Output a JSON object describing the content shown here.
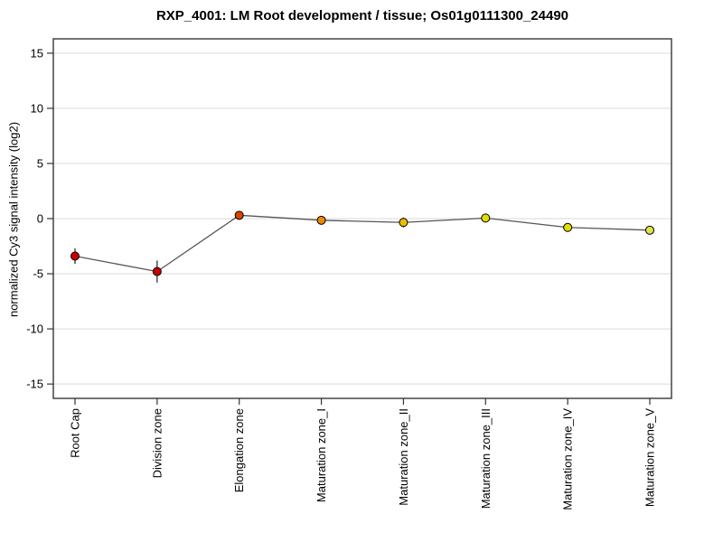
{
  "page": {
    "background": "#ffffff"
  },
  "chart_data": {
    "type": "line",
    "title": "RXP_4001: LM Root development / tissue; Os01g0111300_24490",
    "xlabel": "",
    "ylabel": "normalized Cy3 signal intensity (log2)",
    "categories": [
      "Root Cap",
      "Division zone",
      "Elongation zone",
      "Maturation zone_I",
      "Maturation zone_II",
      "Maturation zone_III",
      "Maturation zone_IV",
      "Maturation zone_V"
    ],
    "values": [
      -3.4,
      -4.8,
      0.3,
      -0.15,
      -0.35,
      0.05,
      -0.8,
      -1.05
    ],
    "errors": [
      0.7,
      1.0,
      0.35,
      0.3,
      0.45,
      0.25,
      0.35,
      0.3
    ],
    "point_colors": [
      "#cc0000",
      "#cc0000",
      "#dd4400",
      "#ee8800",
      "#eebb00",
      "#dddd00",
      "#dddd00",
      "#e2e24e"
    ],
    "yticks": [
      15,
      10,
      5,
      0,
      -5,
      -10,
      -15
    ],
    "ylim": [
      -16.3,
      16.3
    ],
    "grid": true,
    "legend": "none",
    "colors": {
      "line": "#555555",
      "grid": "#e6e6e6",
      "frame": "#444444",
      "tick": "#333333",
      "error_bar": "#222222",
      "point_stroke": "#000000"
    }
  }
}
